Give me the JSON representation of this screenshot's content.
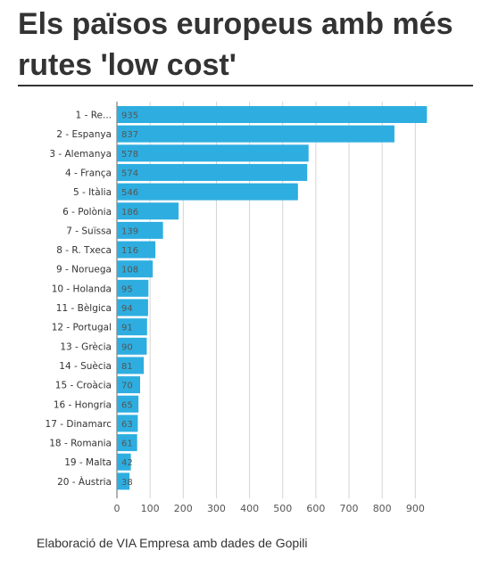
{
  "title": "Els països europeus amb més rutes 'low cost'",
  "footer": "Elaboració de VIA Empresa amb dades de Gopili",
  "chart_data": {
    "type": "bar",
    "orientation": "horizontal",
    "categories": [
      "1 - Re...",
      "2 - Espanya",
      "3 - Alemanya",
      "4 - França",
      "5 - Itàlia",
      "6 - Polònia",
      "7 - Suïssa",
      "8 - R. Txeca",
      "9 - Noruega",
      "10 - Holanda",
      "11 - Bèlgica",
      "12 - Portugal",
      "13 - Grècia",
      "14 - Suècia",
      "15 - Croàcia",
      "16 - Hongria",
      "17 - Dinamarc",
      "18 - Romania",
      "19 - Malta",
      "20 - Àustria"
    ],
    "values": [
      935,
      837,
      578,
      574,
      546,
      186,
      139,
      116,
      108,
      95,
      94,
      91,
      90,
      81,
      70,
      65,
      63,
      61,
      42,
      38
    ],
    "xlim": [
      0,
      950
    ],
    "xticks": [
      0,
      100,
      200,
      300,
      400,
      500,
      600,
      700,
      800,
      900
    ],
    "grid": true,
    "bar_color": "#2eaee0"
  }
}
